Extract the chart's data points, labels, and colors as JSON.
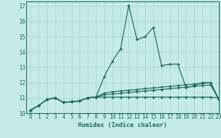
{
  "xlabel": "Humidex (Indice chaleur)",
  "background_color": "#c5ebe8",
  "grid_color": "#aed8d4",
  "line_color": "#1a6b5a",
  "xlim": [
    -0.5,
    23
  ],
  "ylim": [
    10,
    17.3
  ],
  "yticks": [
    10,
    11,
    12,
    13,
    14,
    15,
    16,
    17
  ],
  "xticks": [
    0,
    1,
    2,
    3,
    4,
    5,
    6,
    7,
    8,
    9,
    10,
    11,
    12,
    13,
    14,
    15,
    16,
    17,
    18,
    19,
    20,
    21,
    22,
    23
  ],
  "series": [
    [
      10.2,
      10.5,
      10.9,
      11.0,
      10.7,
      10.75,
      10.8,
      11.0,
      11.05,
      12.4,
      13.4,
      14.2,
      17.05,
      14.8,
      15.0,
      15.6,
      13.1,
      13.2,
      13.2,
      11.65,
      11.8,
      12.0,
      12.0,
      10.9
    ],
    [
      10.2,
      10.5,
      10.9,
      11.0,
      10.7,
      10.75,
      10.8,
      11.0,
      11.05,
      11.3,
      11.4,
      11.45,
      11.5,
      11.55,
      11.6,
      11.65,
      11.7,
      11.75,
      11.8,
      11.85,
      11.9,
      11.95,
      12.0,
      10.9
    ],
    [
      10.2,
      10.5,
      10.9,
      11.0,
      10.7,
      10.75,
      10.8,
      11.0,
      11.05,
      11.2,
      11.25,
      11.3,
      11.35,
      11.4,
      11.45,
      11.5,
      11.55,
      11.6,
      11.65,
      11.7,
      11.75,
      11.8,
      11.85,
      10.9
    ],
    [
      10.2,
      10.5,
      10.9,
      11.0,
      10.7,
      10.75,
      10.8,
      11.0,
      11.05,
      11.05,
      11.05,
      11.05,
      11.05,
      11.05,
      11.05,
      11.05,
      11.05,
      11.05,
      11.05,
      11.05,
      11.05,
      11.05,
      11.05,
      11.0
    ]
  ]
}
